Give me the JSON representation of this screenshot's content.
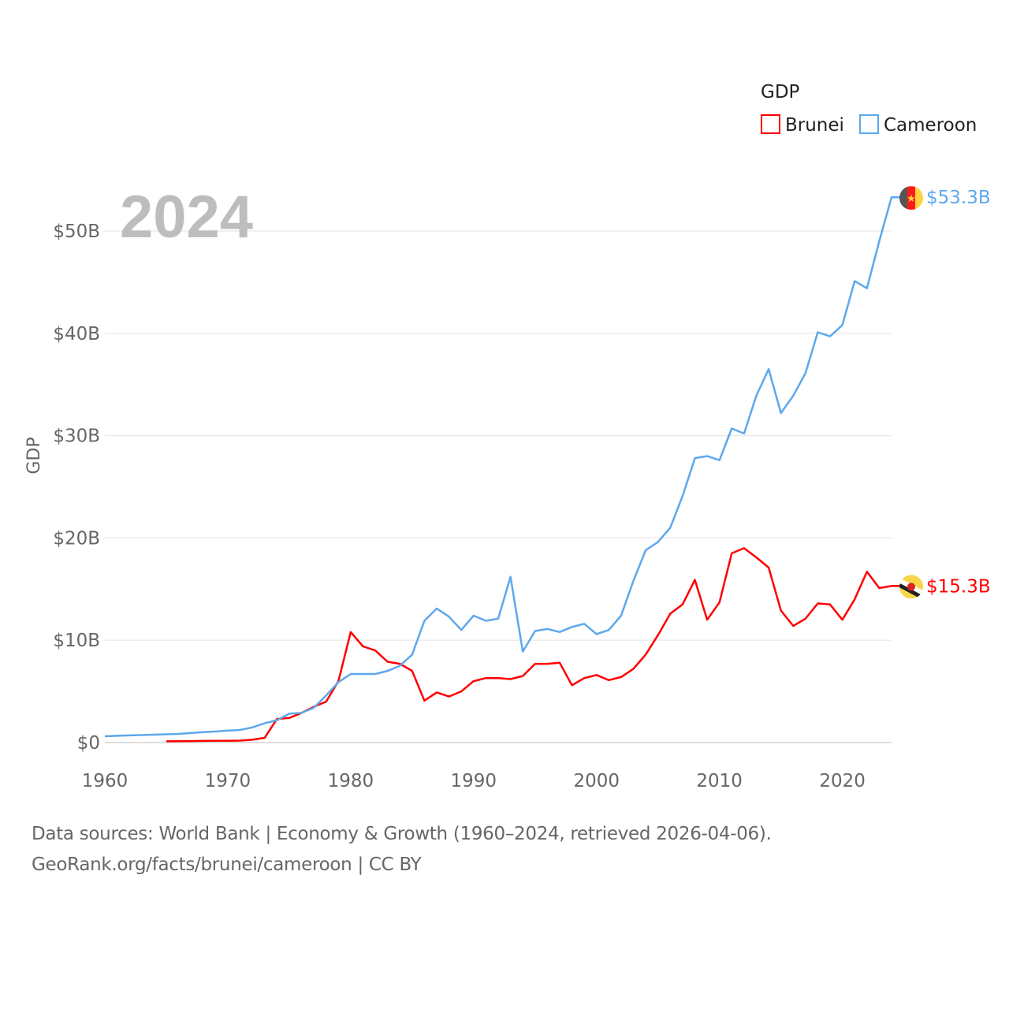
{
  "chart_data": {
    "type": "line",
    "title": "",
    "watermark_year": "2024",
    "xlabel": "",
    "ylabel": "GDP",
    "xlim": [
      1960,
      2024
    ],
    "ylim": [
      0,
      55
    ],
    "grid": true,
    "x_ticks": [
      1960,
      1970,
      1980,
      1990,
      2000,
      2010,
      2020
    ],
    "x_tick_labels": [
      "1960",
      "1970",
      "1980",
      "1990",
      "2000",
      "2010",
      "2020"
    ],
    "y_ticks": [
      0,
      10,
      20,
      30,
      40,
      50
    ],
    "y_tick_labels": [
      "$0",
      "$10B",
      "$20B",
      "$30B",
      "$40B",
      "$50B"
    ],
    "legend": {
      "title": "GDP",
      "placement": "top-right",
      "entries": [
        "Brunei",
        "Cameroon"
      ]
    },
    "series": [
      {
        "name": "Brunei",
        "color": "#ff0000",
        "end_label": "$15.3B",
        "flag": "brunei-flag",
        "start_year": 1965,
        "values": [
          0.12,
          0.14,
          0.15,
          0.16,
          0.17,
          0.18,
          0.19,
          0.28,
          0.46,
          2.3,
          2.4,
          2.9,
          3.5,
          4.0,
          6.0,
          10.8,
          9.4,
          9.0,
          7.9,
          7.7,
          7.0,
          4.1,
          4.9,
          4.5,
          5.0,
          6.0,
          6.3,
          6.3,
          6.2,
          6.5,
          7.7,
          7.7,
          7.8,
          5.6,
          6.3,
          6.6,
          6.1,
          6.4,
          7.2,
          8.6,
          10.5,
          12.6,
          13.5,
          15.9,
          12.0,
          13.7,
          18.5,
          19.0,
          18.1,
          17.1,
          12.9,
          11.4,
          12.1,
          13.6,
          13.5,
          12.0,
          14.0,
          16.7,
          15.1,
          15.3
        ]
      },
      {
        "name": "Cameroon",
        "color": "#5da8ec",
        "end_label": "$53.3B",
        "flag": "cameroon-flag",
        "start_year": 1960,
        "values": [
          0.62,
          0.66,
          0.7,
          0.73,
          0.77,
          0.81,
          0.85,
          0.93,
          1.02,
          1.08,
          1.16,
          1.23,
          1.48,
          1.89,
          2.18,
          2.82,
          2.9,
          3.4,
          4.6,
          5.9,
          6.7,
          6.7,
          6.7,
          7.0,
          7.5,
          8.6,
          11.9,
          13.1,
          12.3,
          11.0,
          12.4,
          11.9,
          12.1,
          16.2,
          8.9,
          10.9,
          11.1,
          10.8,
          11.3,
          11.6,
          10.6,
          11.0,
          12.4,
          15.8,
          18.8,
          19.6,
          21.0,
          24.1,
          27.8,
          28.0,
          27.6,
          30.7,
          30.2,
          33.9,
          36.5,
          32.2,
          33.9,
          36.1,
          40.1,
          39.7,
          40.8,
          45.1,
          44.4,
          49.0,
          53.3
        ]
      }
    ]
  },
  "footer": {
    "line1": "Data sources: World Bank | Economy & Growth (1960–2024, retrieved 2026-04-06).",
    "line2": "GeoRank.org/facts/brunei/cameroon | CC BY"
  }
}
